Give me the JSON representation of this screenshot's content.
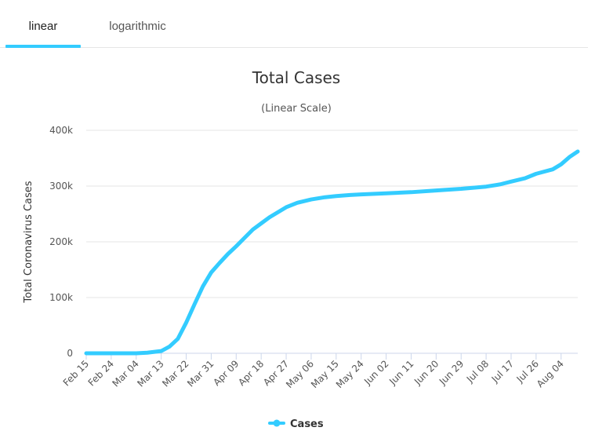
{
  "tabs": [
    {
      "label": "linear",
      "active": true
    },
    {
      "label": "logarithmic",
      "active": false
    }
  ],
  "colors": {
    "accent": "#33ccff",
    "series": "#33ccff",
    "grid": "#e6e6e6",
    "axis": "#ccd6eb"
  },
  "chart_data": {
    "type": "line",
    "title": "Total Cases",
    "subtitle": "(Linear Scale)",
    "ylabel": "Total Coronavirus Cases",
    "xlabel": "",
    "ylim": [
      0,
      400000
    ],
    "yticks": [
      0,
      100000,
      200000,
      300000,
      400000
    ],
    "ytick_labels": [
      "0",
      "100k",
      "200k",
      "300k",
      "400k"
    ],
    "xtick_labels": [
      "Feb 15",
      "Feb 24",
      "Mar 04",
      "Mar 13",
      "Mar 22",
      "Mar 31",
      "Apr 09",
      "Apr 18",
      "Apr 27",
      "May 06",
      "May 15",
      "May 24",
      "Jun 02",
      "Jun 11",
      "Jun 20",
      "Jun 29",
      "Jul 08",
      "Jul 17",
      "Jul 26",
      "Aug 04"
    ],
    "x_start": "Feb 15",
    "x_end": "Aug 10",
    "grid": true,
    "legend_position": "bottom",
    "series": [
      {
        "name": "Cases",
        "color": "#33ccff",
        "x": [
          "Feb 15",
          "Feb 24",
          "Mar 04",
          "Mar 08",
          "Mar 13",
          "Mar 16",
          "Mar 19",
          "Mar 22",
          "Mar 25",
          "Mar 28",
          "Mar 31",
          "Apr 03",
          "Apr 06",
          "Apr 09",
          "Apr 12",
          "Apr 15",
          "Apr 18",
          "Apr 21",
          "Apr 24",
          "Apr 27",
          "May 01",
          "May 06",
          "May 11",
          "May 15",
          "May 20",
          "May 24",
          "Jun 02",
          "Jun 11",
          "Jun 20",
          "Jun 29",
          "Jul 08",
          "Jul 13",
          "Jul 17",
          "Jul 22",
          "Jul 26",
          "Aug 01",
          "Aug 04",
          "Aug 07",
          "Aug 10"
        ],
        "y": [
          0,
          0,
          0,
          1000,
          4000,
          12000,
          26000,
          55000,
          88000,
          120000,
          145000,
          162000,
          178000,
          192000,
          207000,
          222000,
          233000,
          244000,
          253000,
          262000,
          270000,
          276000,
          280000,
          282000,
          284000,
          285000,
          287000,
          289000,
          292000,
          295000,
          299000,
          303000,
          308000,
          314000,
          322000,
          330000,
          339000,
          352000,
          362000
        ]
      }
    ]
  }
}
